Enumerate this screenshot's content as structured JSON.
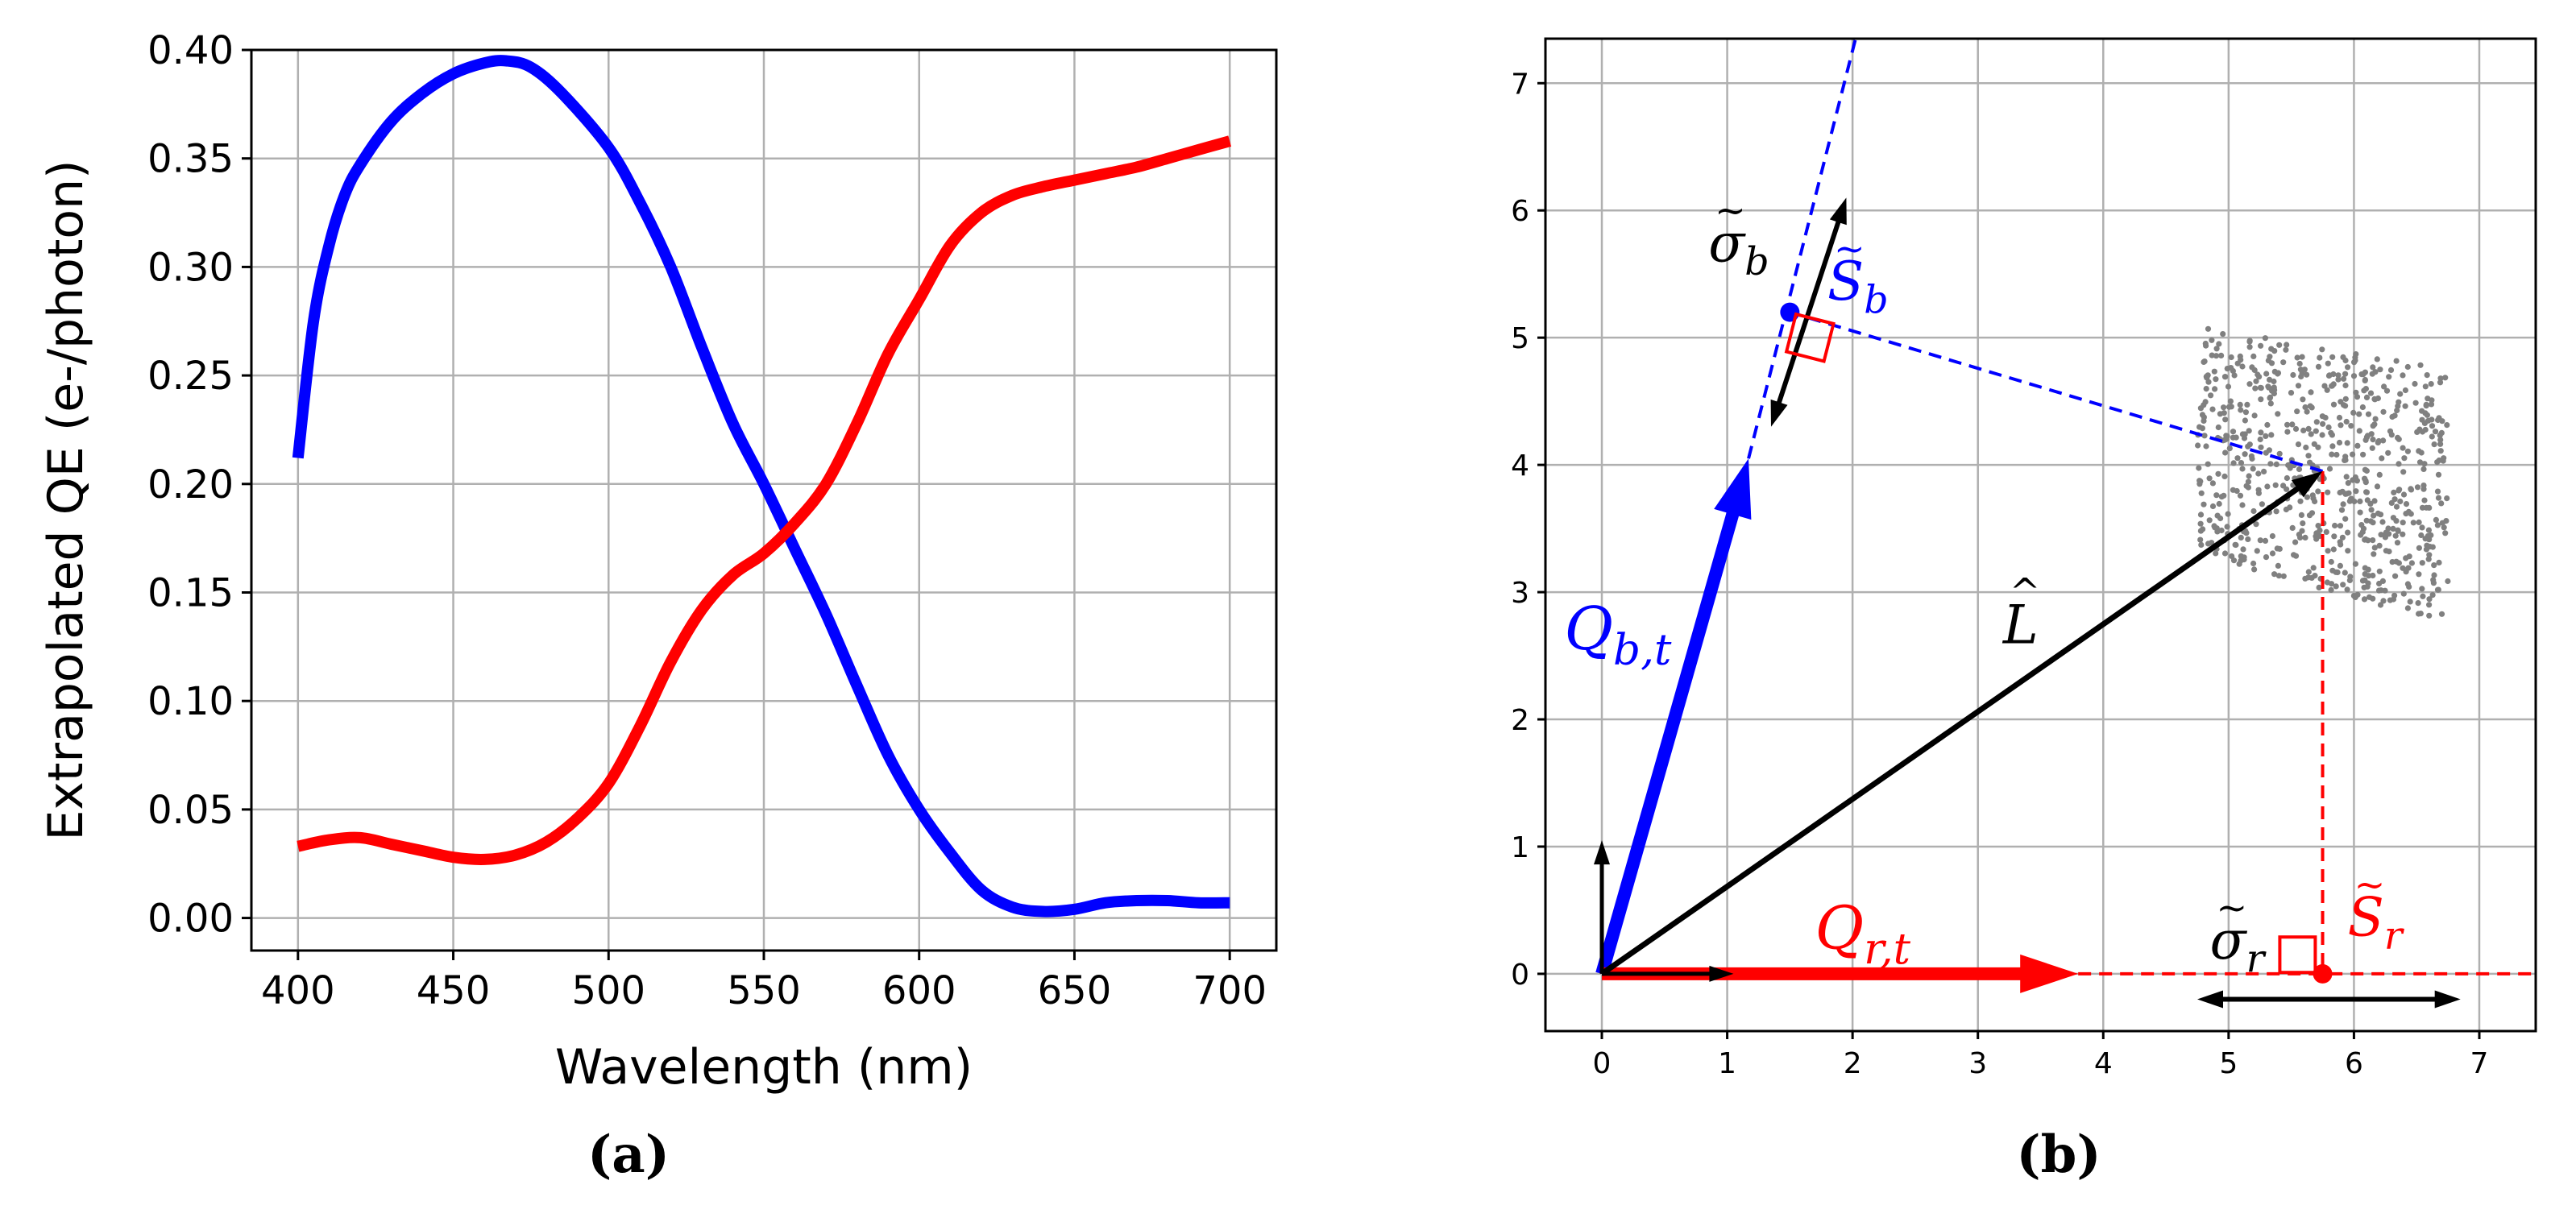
{
  "panel_a": {
    "caption": "(a)",
    "chart_data": {
      "type": "line",
      "title": "",
      "xlabel": "Wavelength (nm)",
      "ylabel": "Extrapolated QE (e-/photon)",
      "xlim": [
        385,
        715
      ],
      "ylim": [
        -0.015,
        0.4
      ],
      "xticks": [
        400,
        450,
        500,
        550,
        600,
        650,
        700
      ],
      "xtick_labels": [
        "400",
        "450",
        "500",
        "550",
        "600",
        "650",
        "700"
      ],
      "yticks": [
        0,
        0.05,
        0.1,
        0.15,
        0.2,
        0.25,
        0.3,
        0.35,
        0.4
      ],
      "ytick_labels": [
        "0.00",
        "0.05",
        "0.10",
        "0.15",
        "0.20",
        "0.25",
        "0.30",
        "0.35",
        "0.40"
      ],
      "grid": true,
      "series": [
        {
          "name": "blue",
          "color": "#0000ff",
          "x": [
            400,
            405,
            410,
            415,
            420,
            430,
            440,
            450,
            460,
            467,
            475,
            485,
            500,
            510,
            520,
            530,
            540,
            550,
            560,
            570,
            580,
            590,
            600,
            610,
            620,
            630,
            640,
            650,
            660,
            670,
            680,
            690,
            700
          ],
          "y": [
            0.212,
            0.275,
            0.31,
            0.333,
            0.347,
            0.367,
            0.38,
            0.389,
            0.394,
            0.395,
            0.392,
            0.38,
            0.355,
            0.33,
            0.3,
            0.263,
            0.228,
            0.2,
            0.17,
            0.14,
            0.107,
            0.075,
            0.05,
            0.03,
            0.013,
            0.005,
            0.003,
            0.004,
            0.007,
            0.008,
            0.008,
            0.007,
            0.007
          ]
        },
        {
          "name": "red",
          "color": "#ff0000",
          "x": [
            400,
            410,
            420,
            430,
            440,
            450,
            460,
            470,
            480,
            490,
            500,
            510,
            520,
            530,
            540,
            550,
            560,
            570,
            580,
            590,
            600,
            610,
            620,
            630,
            640,
            650,
            660,
            670,
            680,
            690,
            700
          ],
          "y": [
            0.033,
            0.036,
            0.037,
            0.034,
            0.031,
            0.028,
            0.027,
            0.029,
            0.035,
            0.046,
            0.062,
            0.088,
            0.118,
            0.142,
            0.158,
            0.168,
            0.182,
            0.2,
            0.228,
            0.26,
            0.285,
            0.31,
            0.325,
            0.333,
            0.337,
            0.34,
            0.343,
            0.346,
            0.35,
            0.354,
            0.358
          ]
        }
      ]
    }
  },
  "panel_b": {
    "caption": "(b)",
    "chart_data": {
      "type": "scatter",
      "title": "",
      "xlabel": "",
      "ylabel": "",
      "xlim": [
        -0.45,
        7.45
      ],
      "ylim": [
        -0.45,
        7.35
      ],
      "xticks": [
        0,
        1,
        2,
        3,
        4,
        5,
        6,
        7
      ],
      "xtick_labels": [
        "0",
        "1",
        "2",
        "3",
        "4",
        "5",
        "6",
        "7"
      ],
      "yticks": [
        0,
        1,
        2,
        3,
        4,
        5,
        6,
        7
      ],
      "ytick_labels": [
        "0",
        "1",
        "2",
        "3",
        "4",
        "5",
        "6",
        "7"
      ],
      "grid": true,
      "scatter": {
        "color": "#808080",
        "x_range": [
          4.75,
          6.75
        ],
        "y_range_left": [
          3.3,
          5.1
        ],
        "y_range_right": [
          2.75,
          4.75
        ],
        "count": 700
      },
      "vectors": [
        {
          "name": "Q_b_t",
          "label": "Q",
          "label_sub": "b,t",
          "from": [
            0,
            0
          ],
          "to": [
            1.17,
            4.05
          ],
          "color": "#0000ff",
          "style": "thick"
        },
        {
          "name": "Q_r_t",
          "label": "Q",
          "label_sub": "r,t",
          "from": [
            0,
            0
          ],
          "to": [
            3.8,
            0
          ],
          "color": "#ff0000",
          "style": "thick"
        },
        {
          "name": "L_hat",
          "label": "L",
          "label_accent": "^",
          "from": [
            0,
            0
          ],
          "to": [
            5.75,
            3.95
          ],
          "color": "#000000",
          "style": "medium"
        },
        {
          "name": "unit_x",
          "from": [
            0,
            0
          ],
          "to": [
            1.05,
            0
          ],
          "color": "#000000",
          "style": "thin"
        },
        {
          "name": "unit_y",
          "from": [
            0,
            0
          ],
          "to": [
            0,
            1.05
          ],
          "color": "#000000",
          "style": "thin"
        },
        {
          "name": "sigma_b",
          "label": "σ",
          "label_accent": "~",
          "label_sub": "b",
          "from": [
            1.35,
            4.3
          ],
          "to": [
            1.95,
            6.1
          ],
          "color": "#000000",
          "style": "double",
          "label_pos": [
            0.85,
            5.6
          ]
        },
        {
          "name": "sigma_r",
          "label": "σ",
          "label_accent": "~",
          "label_sub": "r",
          "from": [
            4.75,
            -0.2
          ],
          "to": [
            6.85,
            -0.2
          ],
          "color": "#000000",
          "style": "double",
          "label_pos": [
            4.85,
            0.12
          ]
        }
      ],
      "projection_lines": [
        {
          "name": "blue-dashed-axis",
          "from": [
            1.17,
            4.05
          ],
          "to": [
            2.05,
            7.45
          ],
          "color": "#0000ff"
        },
        {
          "name": "blue-dashed-projection",
          "from": [
            5.75,
            3.95
          ],
          "to": [
            1.5,
            5.2
          ],
          "color": "#0000ff"
        },
        {
          "name": "red-dashed-projection",
          "from": [
            5.75,
            3.95
          ],
          "to": [
            5.75,
            0
          ],
          "color": "#ff0000"
        },
        {
          "name": "red-dashed-axis",
          "from": [
            3.8,
            0
          ],
          "to": [
            7.45,
            0
          ],
          "color": "#ff0000"
        }
      ],
      "points": [
        {
          "name": "S_b",
          "label": "S",
          "label_accent": "~",
          "label_sub": "b",
          "x": 1.5,
          "y": 5.2,
          "color": "#0000ff",
          "label_pos": [
            1.8,
            5.3
          ]
        },
        {
          "name": "S_r",
          "label": "S",
          "label_accent": "~",
          "label_sub": "r",
          "x": 5.75,
          "y": 0,
          "color": "#ff0000",
          "label_pos": [
            5.95,
            0.3
          ]
        }
      ],
      "right_angle_markers": [
        {
          "name": "right-angle-b",
          "x": 1.66,
          "y": 5.0,
          "color": "#ff0000"
        },
        {
          "name": "right-angle-r",
          "x": 5.55,
          "y": 0.15,
          "color": "#ff0000"
        }
      ]
    }
  }
}
